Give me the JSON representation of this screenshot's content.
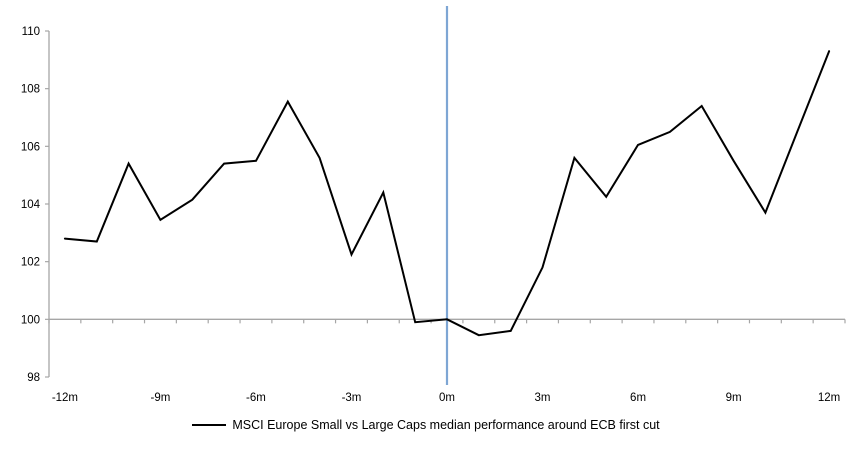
{
  "chart_data": {
    "type": "line",
    "title": "",
    "xlabel": "",
    "ylabel": "",
    "legend": "MSCI Europe Small vs Large Caps median performance around ECB first cut",
    "legend_position": "bottom-center",
    "grid": "off",
    "ylim": [
      98,
      110
    ],
    "baseline_value": 100,
    "x": [
      -12,
      -11,
      -10,
      -9,
      -8,
      -7,
      -6,
      -5,
      -4,
      -3,
      -2,
      -1,
      0,
      1,
      2,
      3,
      4,
      5,
      6,
      7,
      8,
      9,
      10,
      11,
      12
    ],
    "series": [
      {
        "name": "MSCI Europe Small vs Large Caps median performance around ECB first cut",
        "color": "#000000",
        "values": [
          102.8,
          102.7,
          105.4,
          103.45,
          104.15,
          105.4,
          105.5,
          107.55,
          105.6,
          102.25,
          104.4,
          99.9,
          100.0,
          99.45,
          99.6,
          101.8,
          105.6,
          104.25,
          106.05,
          106.5,
          107.4,
          105.5,
          103.7,
          106.5,
          109.3
        ]
      }
    ],
    "y_ticks": [
      {
        "value": 98,
        "label": "98"
      },
      {
        "value": 100,
        "label": "100"
      },
      {
        "value": 102,
        "label": "102"
      },
      {
        "value": 104,
        "label": "104"
      },
      {
        "value": 106,
        "label": "106"
      },
      {
        "value": 108,
        "label": "108"
      },
      {
        "value": 110,
        "label": "110"
      }
    ],
    "x_ticks": [
      {
        "month": -12,
        "label": "-12m"
      },
      {
        "month": -9,
        "label": "-9m"
      },
      {
        "month": -6,
        "label": "-6m"
      },
      {
        "month": -3,
        "label": "-3m"
      },
      {
        "month": 0,
        "label": "0m"
      },
      {
        "month": 3,
        "label": "3m"
      },
      {
        "month": 6,
        "label": "6m"
      },
      {
        "month": 9,
        "label": "9m"
      },
      {
        "month": 12,
        "label": "12m"
      }
    ],
    "event_line": {
      "month": 0,
      "color": "#7ea6d4"
    },
    "colors": {
      "series": "#000000",
      "axis": "#a6a6a6",
      "baseline": "#a6a6a6",
      "event_line": "#7ea6d4",
      "text": "#000000"
    }
  }
}
